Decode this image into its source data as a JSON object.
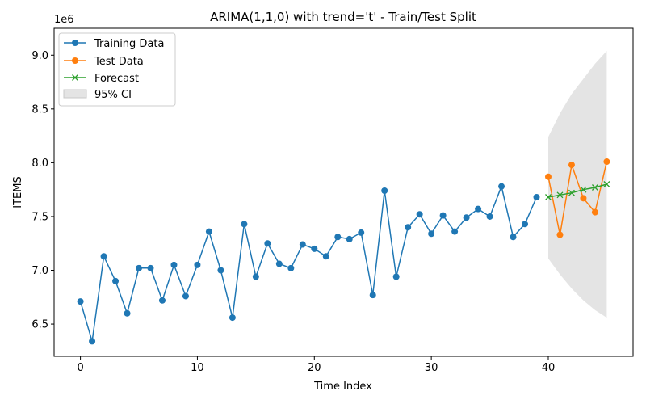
{
  "chart_data": {
    "type": "line",
    "title": "ARIMA(1,1,0) with trend='t' - Train/Test Split",
    "xlabel": "Time Index",
    "ylabel": "ITEMS",
    "y_offset_label": "1e6",
    "xlim": [
      -2.25,
      47.25
    ],
    "ylim": [
      6.2,
      9.25
    ],
    "x_ticks": [
      0,
      10,
      20,
      30,
      40
    ],
    "y_ticks": [
      6.5,
      7.0,
      7.5,
      8.0,
      8.5,
      9.0
    ],
    "x_tick_labels": [
      "0",
      "10",
      "20",
      "30",
      "40"
    ],
    "y_tick_labels": [
      "6.5",
      "7.0",
      "7.5",
      "8.0",
      "8.5",
      "9.0"
    ],
    "grid": false,
    "legend_position": "top-left",
    "colors": {
      "training": "#1f77b4",
      "test": "#ff7f0e",
      "forecast": "#2ca02c",
      "ci": "#d9d9d9"
    },
    "series": [
      {
        "name": "Training Data",
        "marker": "circle",
        "x": [
          0,
          1,
          2,
          3,
          4,
          5,
          6,
          7,
          8,
          9,
          10,
          11,
          12,
          13,
          14,
          15,
          16,
          17,
          18,
          19,
          20,
          21,
          22,
          23,
          24,
          25,
          26,
          27,
          28,
          29,
          30,
          31,
          32,
          33,
          34,
          35,
          36,
          37,
          38,
          39
        ],
        "values": [
          6.71,
          6.34,
          7.13,
          6.9,
          6.6,
          7.02,
          7.02,
          6.72,
          7.05,
          6.76,
          7.05,
          7.36,
          7.0,
          6.56,
          7.43,
          6.94,
          7.25,
          7.06,
          7.02,
          7.24,
          7.2,
          7.13,
          7.31,
          7.29,
          7.35,
          6.77,
          7.74,
          6.94,
          7.4,
          7.52,
          7.34,
          7.51,
          7.36,
          7.49,
          7.57,
          7.5,
          7.78,
          7.31,
          7.43,
          7.68
        ]
      },
      {
        "name": "Test Data",
        "marker": "circle",
        "x": [
          40,
          41,
          42,
          43,
          44,
          45
        ],
        "values": [
          7.87,
          7.33,
          7.98,
          7.67,
          7.54,
          8.01
        ]
      },
      {
        "name": "Forecast",
        "marker": "x",
        "x": [
          40,
          41,
          42,
          43,
          44,
          45
        ],
        "values": [
          7.68,
          7.7,
          7.72,
          7.75,
          7.77,
          7.8
        ]
      }
    ],
    "ci": {
      "name": "95% CI",
      "x": [
        40,
        41,
        42,
        43,
        44,
        45
      ],
      "lower": [
        7.11,
        6.96,
        6.83,
        6.72,
        6.63,
        6.56
      ],
      "upper": [
        8.24,
        8.46,
        8.64,
        8.78,
        8.92,
        9.04
      ]
    }
  }
}
